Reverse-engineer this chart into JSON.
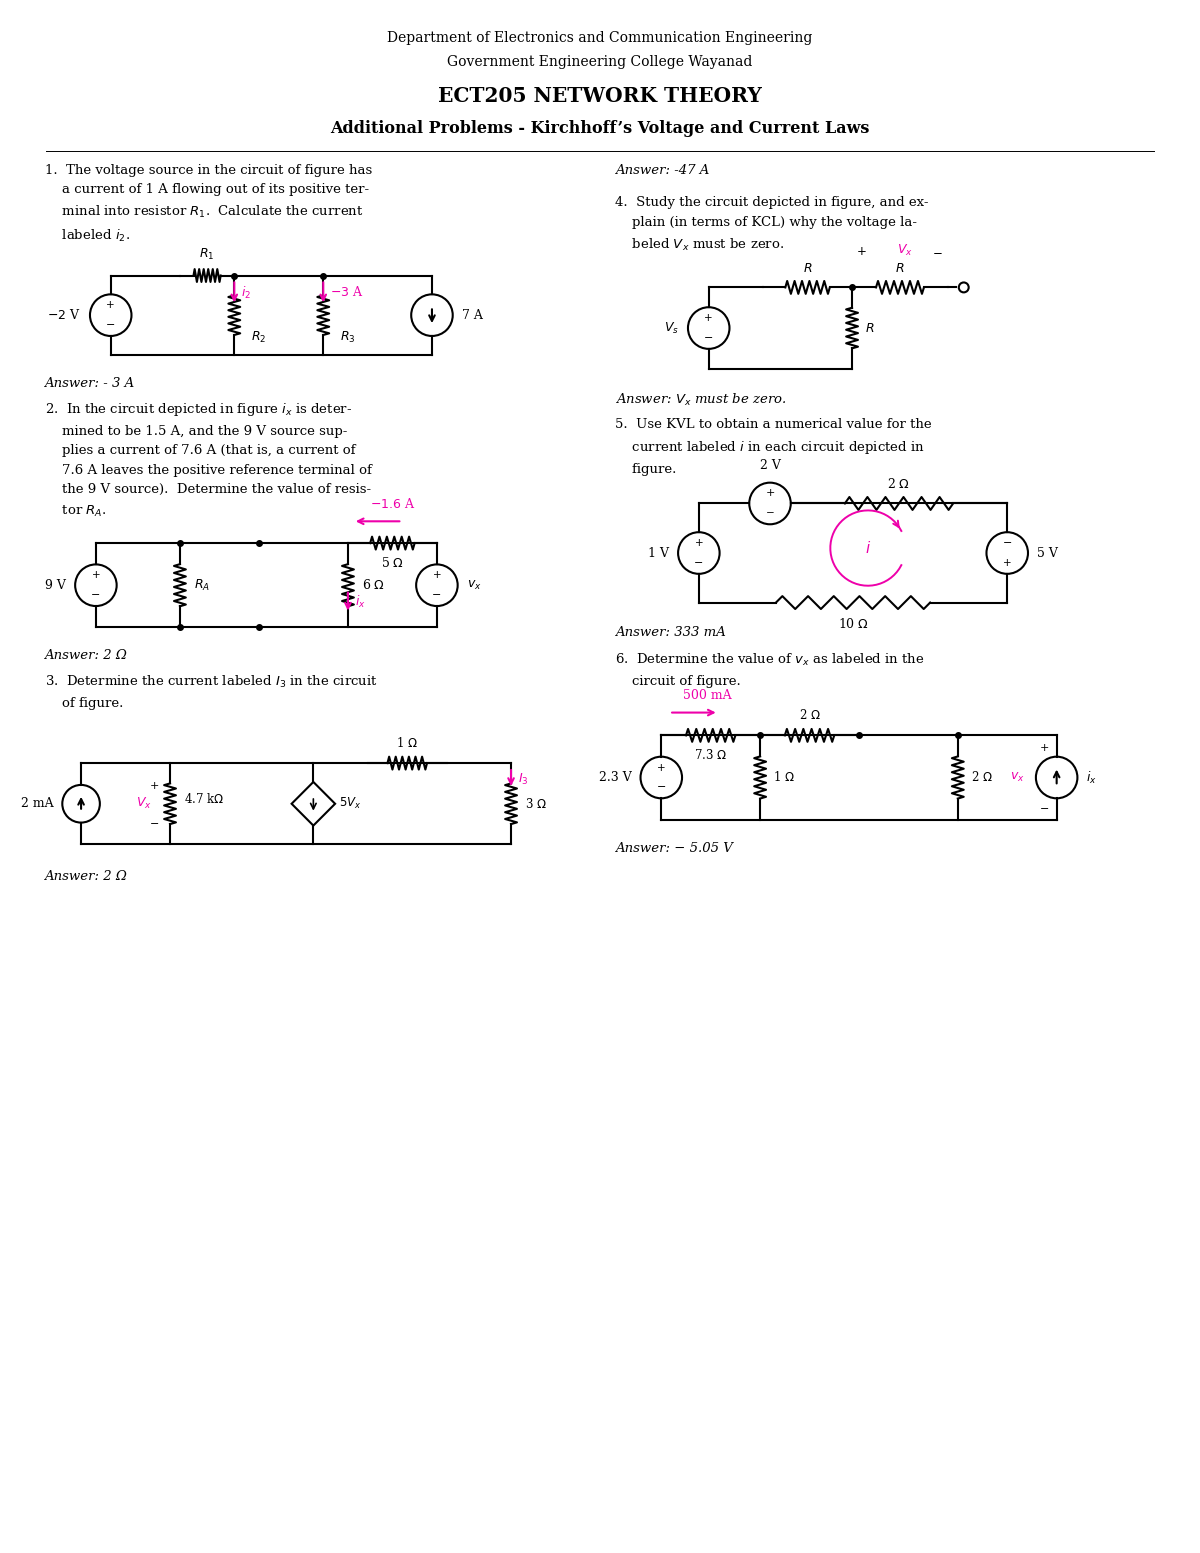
{
  "title_dept": "Department of Electronics and Communication Engineering",
  "title_college": "Government Engineering College Wayanad",
  "title_course": "ECT205 NETWORK THEORY",
  "title_sub": "Additional Problems - Kirchhoff’s Voltage and Current Laws",
  "bg_color": "#ffffff",
  "text_color": "#000000",
  "accent": "#ee00aa"
}
